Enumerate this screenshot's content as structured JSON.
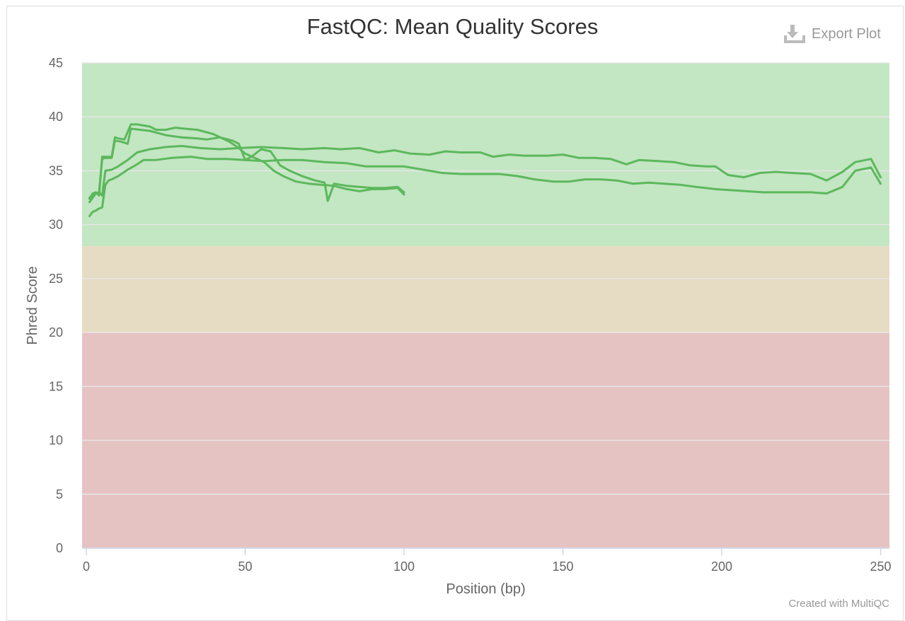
{
  "title": "FastQC: Mean Quality Scores",
  "export_label": "Export Plot",
  "credit": "Created with MultiQC",
  "chart_data": {
    "type": "line",
    "title": "FastQC: Mean Quality Scores",
    "xlabel": "Position (bp)",
    "ylabel": "Phred Score",
    "xlim": [
      0,
      254
    ],
    "ylim": [
      0,
      45
    ],
    "xticks": [
      0,
      50,
      100,
      150,
      200,
      250
    ],
    "yticks": [
      0,
      5,
      10,
      15,
      20,
      25,
      30,
      35,
      40,
      45
    ],
    "grid": true,
    "line_color": "#5cb85c",
    "bands": [
      {
        "from": 28,
        "to": 45,
        "color": "#c3e6c3"
      },
      {
        "from": 20,
        "to": 28,
        "color": "#e6dcc3"
      },
      {
        "from": 0,
        "to": 20,
        "color": "#e6c3c3"
      }
    ],
    "series": [
      {
        "values": [
          [
            1,
            32.4
          ],
          [
            2,
            32.9
          ],
          [
            3,
            33.0
          ],
          [
            4,
            32.7
          ],
          [
            5,
            36.3
          ],
          [
            6,
            36.3
          ],
          [
            7,
            36.3
          ],
          [
            8,
            36.3
          ],
          [
            9,
            38.1
          ],
          [
            10,
            38.0
          ],
          [
            12,
            37.9
          ],
          [
            14,
            39.3
          ],
          [
            16,
            39.3
          ],
          [
            18,
            39.2
          ],
          [
            20,
            39.1
          ],
          [
            22,
            38.8
          ],
          [
            25,
            38.8
          ],
          [
            28,
            39.0
          ],
          [
            31,
            38.9
          ],
          [
            35,
            38.8
          ],
          [
            40,
            38.4
          ],
          [
            45,
            37.7
          ],
          [
            48,
            37.1
          ],
          [
            50,
            36.6
          ],
          [
            53,
            36.2
          ],
          [
            56,
            35.8
          ],
          [
            59,
            35.0
          ],
          [
            62,
            34.5
          ],
          [
            66,
            34.0
          ],
          [
            70,
            33.8
          ],
          [
            74,
            33.7
          ],
          [
            78,
            33.6
          ],
          [
            82,
            33.3
          ],
          [
            86,
            33.1
          ],
          [
            90,
            33.3
          ],
          [
            94,
            33.3
          ],
          [
            98,
            33.4
          ],
          [
            100,
            32.8
          ]
        ]
      },
      {
        "values": [
          [
            1,
            32.1
          ],
          [
            2,
            32.5
          ],
          [
            3,
            32.9
          ],
          [
            4,
            33.0
          ],
          [
            5,
            36.1
          ],
          [
            6,
            36.2
          ],
          [
            8,
            36.2
          ],
          [
            9,
            37.8
          ],
          [
            11,
            37.7
          ],
          [
            13,
            37.5
          ],
          [
            14,
            38.9
          ],
          [
            17,
            38.8
          ],
          [
            20,
            38.7
          ],
          [
            25,
            38.3
          ],
          [
            30,
            38.1
          ],
          [
            35,
            38.0
          ],
          [
            38,
            37.9
          ],
          [
            42,
            38.1
          ],
          [
            46,
            37.8
          ],
          [
            48,
            37.5
          ],
          [
            50,
            36.0
          ],
          [
            52,
            36.3
          ],
          [
            55,
            37.0
          ],
          [
            58,
            36.8
          ],
          [
            61,
            35.5
          ],
          [
            64,
            35.0
          ],
          [
            68,
            34.5
          ],
          [
            72,
            34.1
          ],
          [
            75,
            33.9
          ],
          [
            76,
            32.2
          ],
          [
            78,
            33.8
          ],
          [
            82,
            33.6
          ],
          [
            86,
            33.5
          ],
          [
            90,
            33.4
          ],
          [
            94,
            33.4
          ],
          [
            98,
            33.5
          ],
          [
            100,
            33.0
          ]
        ]
      },
      {
        "values": [
          [
            1,
            32.5
          ],
          [
            2,
            32.7
          ],
          [
            3,
            32.9
          ],
          [
            4,
            33.0
          ],
          [
            5,
            32.7
          ],
          [
            6,
            35.0
          ],
          [
            8,
            35.1
          ],
          [
            10,
            35.4
          ],
          [
            13,
            36.0
          ],
          [
            16,
            36.7
          ],
          [
            20,
            37.0
          ],
          [
            25,
            37.2
          ],
          [
            30,
            37.3
          ],
          [
            36,
            37.1
          ],
          [
            42,
            37.0
          ],
          [
            48,
            37.1
          ],
          [
            55,
            37.2
          ],
          [
            62,
            37.1
          ],
          [
            68,
            37.0
          ],
          [
            75,
            37.1
          ],
          [
            80,
            37.0
          ],
          [
            86,
            37.1
          ],
          [
            92,
            36.7
          ],
          [
            97,
            36.9
          ],
          [
            102,
            36.6
          ],
          [
            108,
            36.5
          ],
          [
            113,
            36.8
          ],
          [
            118,
            36.7
          ],
          [
            124,
            36.7
          ],
          [
            128,
            36.3
          ],
          [
            133,
            36.5
          ],
          [
            138,
            36.4
          ],
          [
            145,
            36.4
          ],
          [
            150,
            36.5
          ],
          [
            155,
            36.2
          ],
          [
            160,
            36.2
          ],
          [
            165,
            36.1
          ],
          [
            170,
            35.6
          ],
          [
            174,
            36.0
          ],
          [
            180,
            35.9
          ],
          [
            185,
            35.8
          ],
          [
            190,
            35.5
          ],
          [
            195,
            35.4
          ],
          [
            198,
            35.4
          ],
          [
            202,
            34.6
          ],
          [
            207,
            34.4
          ],
          [
            212,
            34.8
          ],
          [
            217,
            34.9
          ],
          [
            222,
            34.8
          ],
          [
            228,
            34.7
          ],
          [
            233,
            34.1
          ],
          [
            238,
            34.9
          ],
          [
            242,
            35.8
          ],
          [
            247,
            36.1
          ],
          [
            250,
            34.4
          ]
        ]
      },
      {
        "values": [
          [
            1,
            30.8
          ],
          [
            2,
            31.2
          ],
          [
            3,
            31.3
          ],
          [
            4,
            31.5
          ],
          [
            5,
            31.6
          ],
          [
            6,
            33.7
          ],
          [
            7,
            34.1
          ],
          [
            8,
            34.2
          ],
          [
            10,
            34.5
          ],
          [
            13,
            35.1
          ],
          [
            16,
            35.6
          ],
          [
            18,
            36.0
          ],
          [
            22,
            36.0
          ],
          [
            27,
            36.2
          ],
          [
            33,
            36.3
          ],
          [
            38,
            36.1
          ],
          [
            44,
            36.1
          ],
          [
            50,
            36.0
          ],
          [
            56,
            35.9
          ],
          [
            62,
            36.0
          ],
          [
            68,
            36.0
          ],
          [
            75,
            35.8
          ],
          [
            82,
            35.7
          ],
          [
            88,
            35.4
          ],
          [
            94,
            35.4
          ],
          [
            100,
            35.4
          ],
          [
            106,
            35.1
          ],
          [
            112,
            34.8
          ],
          [
            118,
            34.7
          ],
          [
            124,
            34.7
          ],
          [
            130,
            34.7
          ],
          [
            136,
            34.5
          ],
          [
            141,
            34.2
          ],
          [
            147,
            34.0
          ],
          [
            152,
            34.0
          ],
          [
            157,
            34.2
          ],
          [
            162,
            34.2
          ],
          [
            167,
            34.1
          ],
          [
            172,
            33.8
          ],
          [
            177,
            33.9
          ],
          [
            182,
            33.8
          ],
          [
            187,
            33.7
          ],
          [
            192,
            33.5
          ],
          [
            198,
            33.3
          ],
          [
            203,
            33.2
          ],
          [
            208,
            33.1
          ],
          [
            213,
            33.0
          ],
          [
            218,
            33.0
          ],
          [
            223,
            33.0
          ],
          [
            228,
            33.0
          ],
          [
            233,
            32.9
          ],
          [
            238,
            33.5
          ],
          [
            242,
            35.0
          ],
          [
            247,
            35.3
          ],
          [
            250,
            33.8
          ]
        ]
      }
    ]
  }
}
